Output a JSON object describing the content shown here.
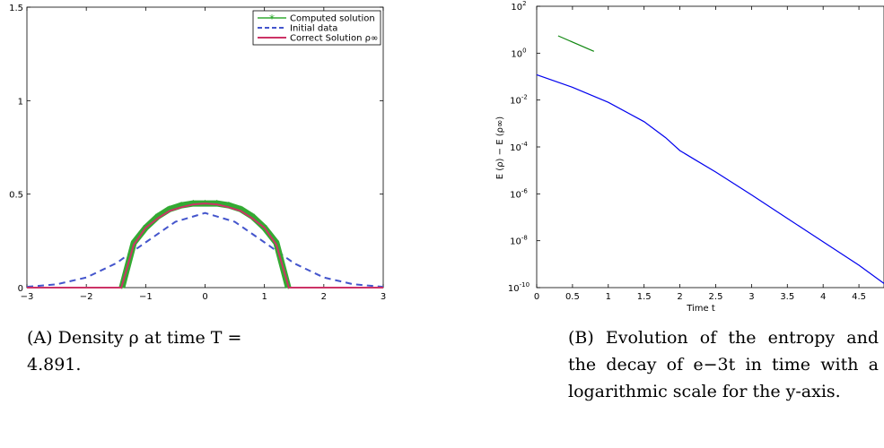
{
  "chart_data": [
    {
      "id": "a",
      "type": "line",
      "xlim": [
        -3,
        3
      ],
      "ylim": [
        0,
        1.5
      ],
      "xticks": [
        "−3",
        "−2",
        "−1",
        "0",
        "1",
        "2",
        "3"
      ],
      "yticks": [
        "0",
        "0.5",
        "1",
        "1.5"
      ],
      "legend_position": "top-right",
      "series": [
        {
          "name": "Computed solution",
          "color": "#33aa33",
          "style": "solid-with-star-markers",
          "x": [
            -1.4,
            -1.2,
            -1.0,
            -0.8,
            -0.6,
            -0.4,
            -0.2,
            0,
            0.2,
            0.4,
            0.6,
            0.8,
            1.0,
            1.2,
            1.4
          ],
          "y": [
            0.0,
            0.24,
            0.32,
            0.38,
            0.42,
            0.44,
            0.45,
            0.45,
            0.45,
            0.44,
            0.42,
            0.38,
            0.32,
            0.24,
            0.0
          ]
        },
        {
          "name": "Initial data",
          "color": "#4455cc",
          "style": "dashed",
          "x": [
            -3,
            -2.5,
            -2,
            -1.5,
            -1,
            -0.5,
            0,
            0.5,
            1,
            1.5,
            2,
            2.5,
            3
          ],
          "y": [
            0.0044,
            0.0175,
            0.054,
            0.13,
            0.242,
            0.352,
            0.399,
            0.352,
            0.242,
            0.13,
            0.054,
            0.0175,
            0.0044
          ]
        },
        {
          "name": "Correct Solution ρ∞",
          "color": "#cc3366",
          "style": "solid",
          "x": [
            -3,
            -1.41,
            -1.2,
            -1.0,
            -0.8,
            -0.6,
            -0.4,
            -0.2,
            0,
            0.2,
            0.4,
            0.6,
            0.8,
            1.0,
            1.2,
            1.41,
            3
          ],
          "y": [
            0,
            0,
            0.23,
            0.32,
            0.37,
            0.41,
            0.43,
            0.445,
            0.45,
            0.445,
            0.43,
            0.41,
            0.37,
            0.32,
            0.23,
            0,
            0
          ]
        }
      ]
    },
    {
      "id": "b",
      "type": "line",
      "yscale": "log",
      "xlim": [
        0,
        4.85
      ],
      "ylim": [
        1e-10,
        100
      ],
      "xticks": [
        "0",
        "0.5",
        "1",
        "1.5",
        "2",
        "2.5",
        "3",
        "3.5",
        "4",
        "4.5"
      ],
      "yticks": [
        {
          "base": "10",
          "exp": "2"
        },
        {
          "base": "10",
          "exp": "0"
        },
        {
          "base": "10",
          "exp": "-2"
        },
        {
          "base": "10",
          "exp": "-4"
        },
        {
          "base": "10",
          "exp": "-6"
        },
        {
          "base": "10",
          "exp": "-8"
        },
        {
          "base": "10",
          "exp": "-10"
        }
      ],
      "xlabel": "Time t",
      "ylabel": "E (ρ) − E (ρ∞)",
      "series": [
        {
          "color": "#0000ee",
          "x": [
            0,
            0.5,
            1.0,
            1.5,
            1.8,
            2.0,
            2.2,
            2.5,
            3.0,
            3.5,
            4.0,
            4.5,
            4.85
          ],
          "y": [
            0.12,
            0.035,
            0.008,
            0.0012,
            0.00025,
            7e-05,
            3e-05,
            8.5e-06,
            9e-07,
            9e-08,
            9e-09,
            9e-10,
            1.5e-10
          ]
        },
        {
          "color": "#118811",
          "x": [
            0.3,
            0.8
          ],
          "y": [
            5.5,
            1.2
          ]
        }
      ]
    }
  ],
  "captions": {
    "a_label": "(A)",
    "a_text": " Density ρ at time T = 4.891.",
    "b_label": "(B)",
    "b_text": " Evolution of the entropy and the decay of e−3t in time with a logarithmic scale for the y-axis."
  }
}
